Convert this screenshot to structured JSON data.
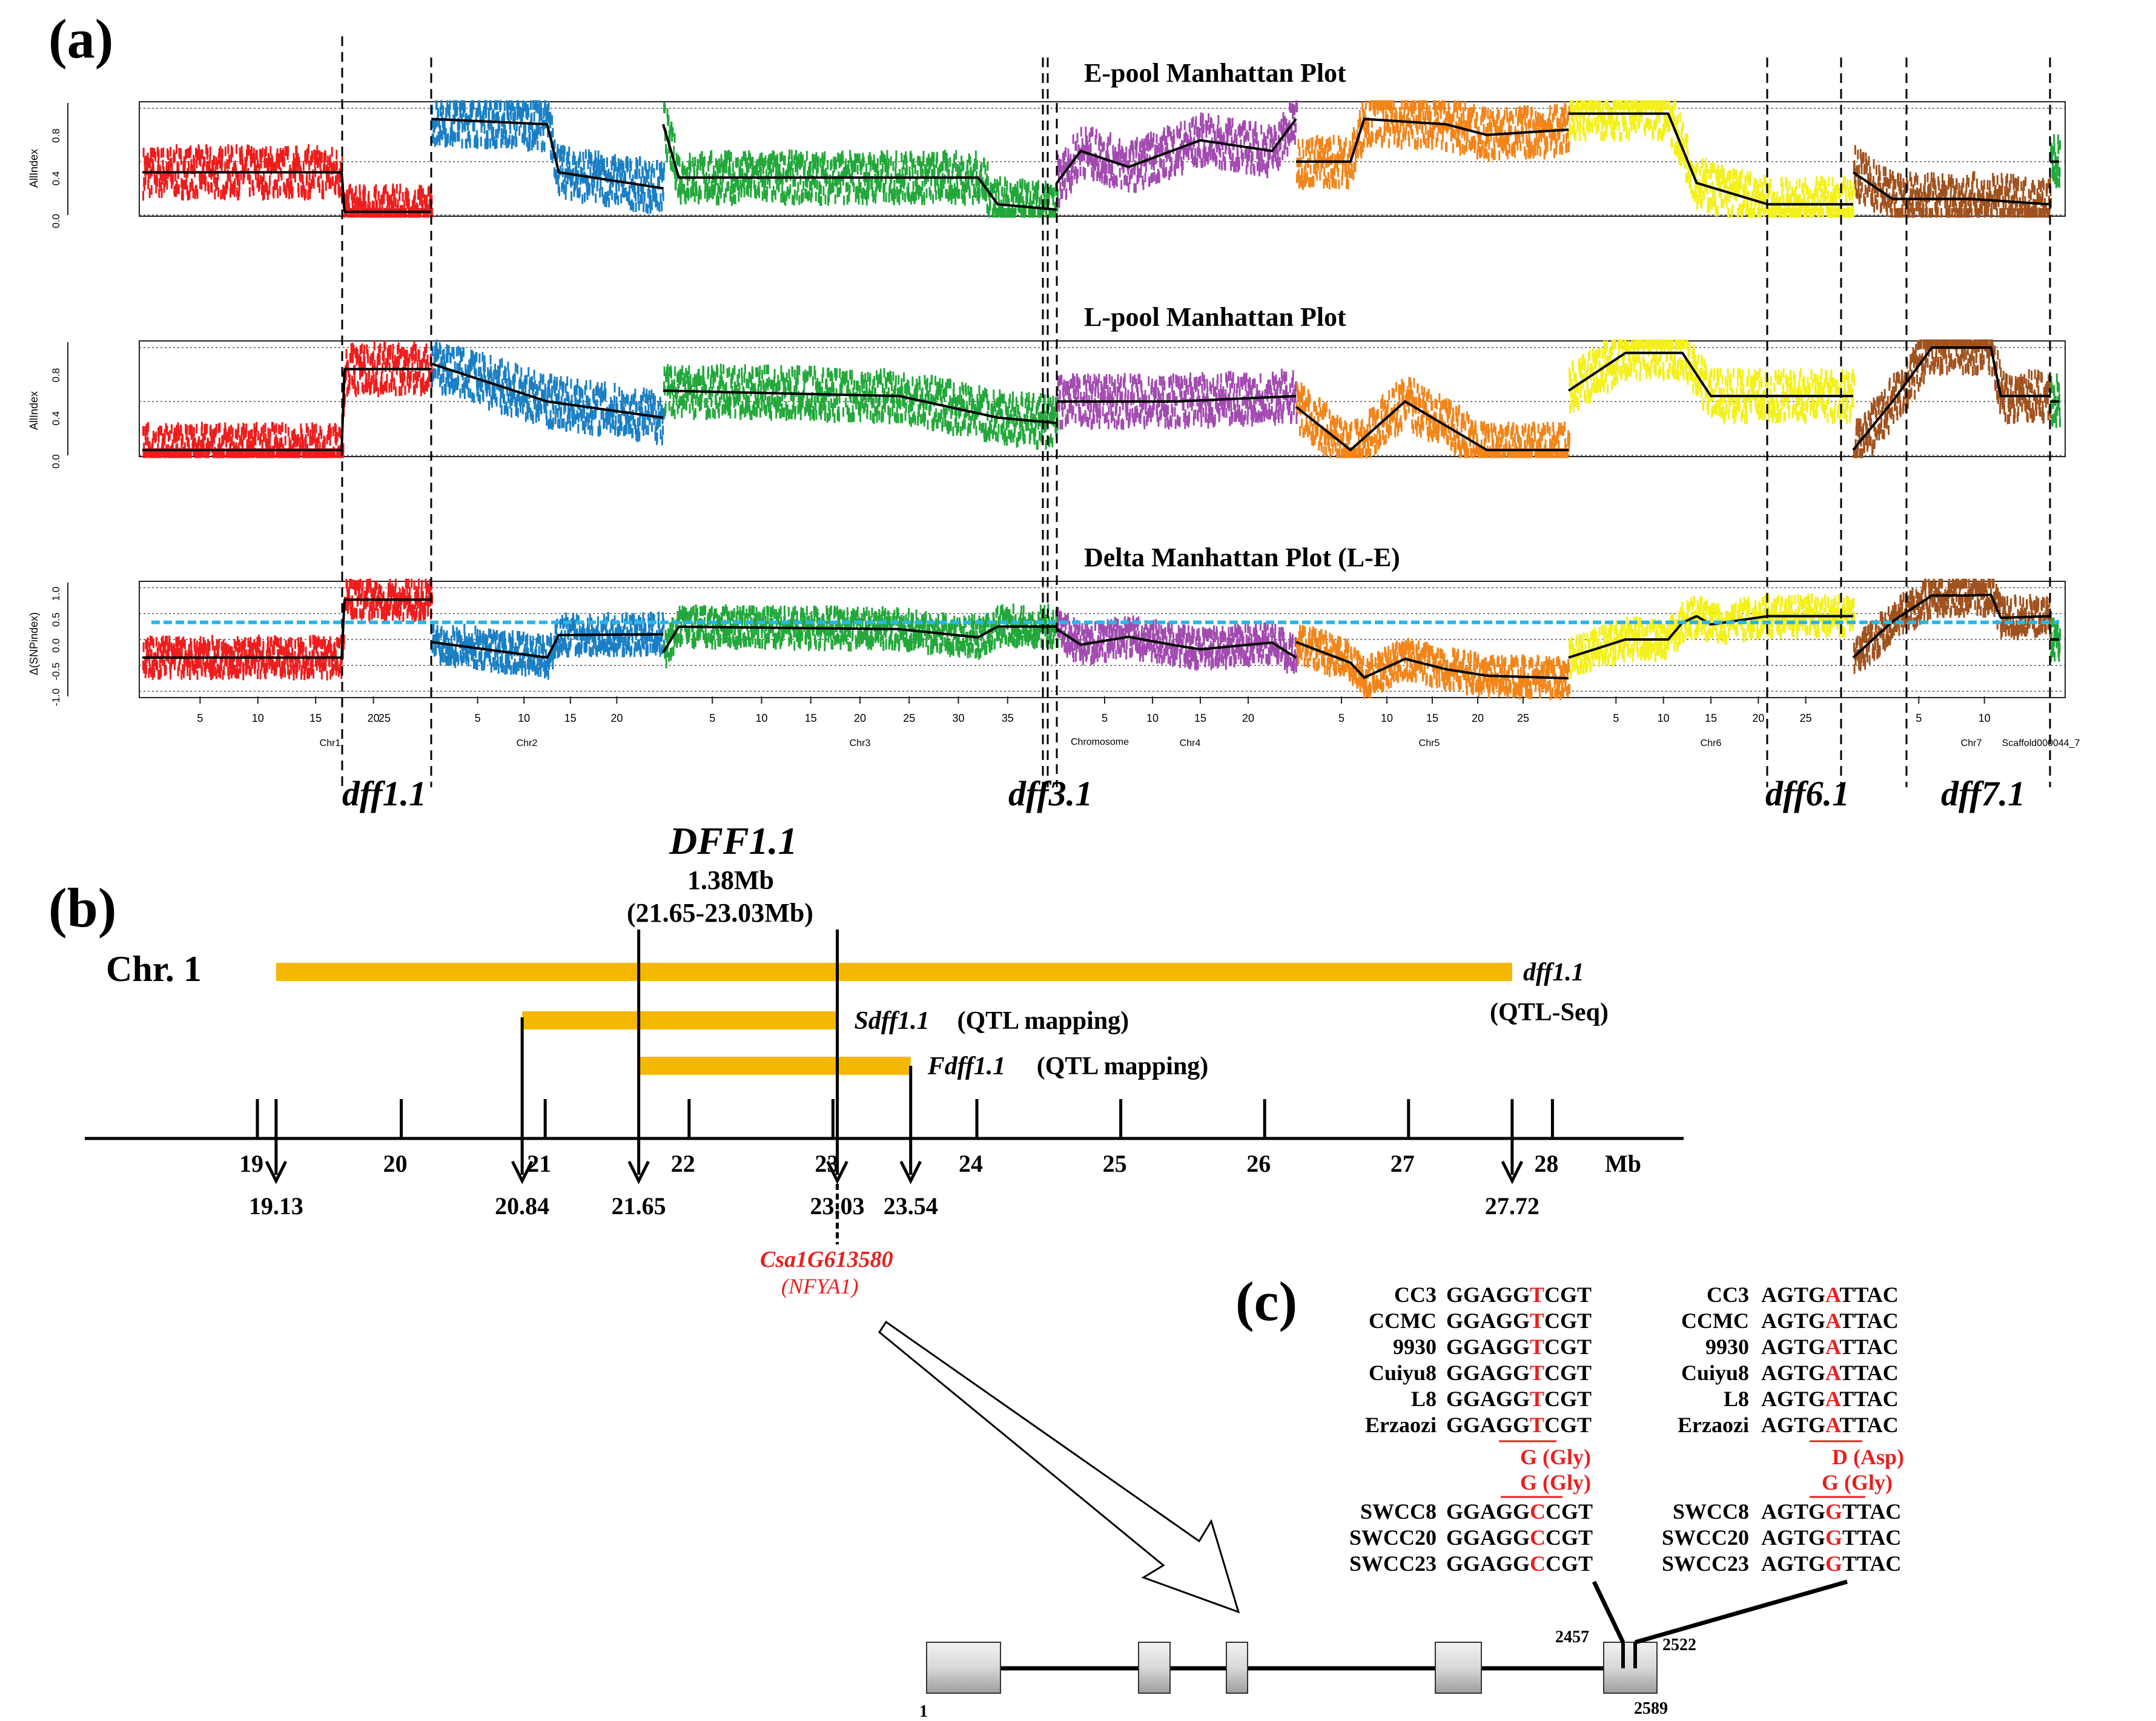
{
  "panels": {
    "a": {
      "label": "(a)",
      "plots": [
        {
          "title": "E-pool Manhattan Plot",
          "ylabel": "AllIndex",
          "yticks": [
            "0.0",
            "0.4",
            "0.8"
          ]
        },
        {
          "title": "L-pool Manhattan Plot",
          "ylabel": "AllIndex",
          "yticks": [
            "0.0",
            "0.4",
            "0.8"
          ]
        },
        {
          "title": "Delta Manhattan Plot (L-E)",
          "ylabel": "Δ(SNPindex)",
          "yticks": [
            "-1.0",
            "-0.5",
            "0.0",
            "0.5",
            "1.0"
          ]
        }
      ],
      "chromosomes": [
        {
          "name": "Chr1",
          "color": "#ee1c1c",
          "ticks": [
            "5",
            "10",
            "15",
            "20"
          ]
        },
        {
          "name": "Chr2",
          "color": "#1a7fc4",
          "ticks": [
            "5",
            "10",
            "15",
            "20"
          ]
        },
        {
          "name": "Chr3",
          "color": "#22a83a",
          "ticks": [
            "5",
            "10",
            "15",
            "20",
            "25",
            "30",
            "35"
          ]
        },
        {
          "name": "Chr4",
          "color": "#a24bb0",
          "ticks": [
            "5",
            "10",
            "15",
            "20"
          ]
        },
        {
          "name": "Chr5",
          "color": "#f28418",
          "ticks": [
            "5",
            "10",
            "15",
            "20",
            "25"
          ]
        },
        {
          "name": "Chr6",
          "color": "#f4f01a",
          "ticks": [
            "5",
            "10",
            "15",
            "20",
            "25"
          ]
        },
        {
          "name": "Chr7",
          "color": "#a0521e",
          "ticks": [
            "5",
            "10"
          ]
        },
        {
          "name": "Scaffold000044_7",
          "color": "#22a83a",
          "ticks": []
        }
      ],
      "xlabel": "Chromosome",
      "extra_tick": "25",
      "qtl_labels": [
        "dff1.1",
        "dff3.1",
        "dff6.1",
        "dff7.1"
      ]
    },
    "b": {
      "label": "(b)",
      "gene_title": "DFF1.1",
      "size": "1.38Mb",
      "range": "(21.65-23.03Mb)",
      "chr": "Chr. 1",
      "bars": [
        {
          "name": "dff1.1",
          "method": "(QTL-Seq)",
          "start": 19.13,
          "end": 27.72
        },
        {
          "name": "Sdff1.1",
          "method": "(QTL mapping)",
          "start": 20.84,
          "end": 23.03
        },
        {
          "name": "Fdff1.1",
          "method": "(QTL mapping)",
          "start": 21.65,
          "end": 23.54
        }
      ],
      "axis_ticks": [
        "19",
        "20",
        "21",
        "22",
        "23",
        "24",
        "25",
        "26",
        "27",
        "28"
      ],
      "axis_unit": "Mb",
      "markers": [
        "19.13",
        "20.84",
        "21.65",
        "23.03",
        "23.54",
        "27.72"
      ],
      "candidate_gene": "Csa1G613580",
      "candidate_alias": "(NFYA1)",
      "bar_color": "#f5b800"
    },
    "c": {
      "label": "(c)",
      "groups": [
        {
          "lines": [
            {
              "name": "CC3",
              "s1": "GGAGG",
              "m1": "T",
              "e1": "CGT",
              "s2": "AGTG",
              "m2": "A",
              "e2": "TTAC"
            },
            {
              "name": "CCMC",
              "s1": "GGAGG",
              "m1": "T",
              "e1": "CGT",
              "s2": "AGTG",
              "m2": "A",
              "e2": "TTAC"
            },
            {
              "name": "9930",
              "s1": "GGAGG",
              "m1": "T",
              "e1": "CGT",
              "s2": "AGTG",
              "m2": "A",
              "e2": "TTAC"
            },
            {
              "name": "Cuiyu8",
              "s1": "GGAGG",
              "m1": "T",
              "e1": "CGT",
              "s2": "AGTG",
              "m2": "A",
              "e2": "TTAC"
            },
            {
              "name": "L8",
              "s1": "GGAGG",
              "m1": "T",
              "e1": "CGT",
              "s2": "AGTG",
              "m2": "A",
              "e2": "TTAC"
            },
            {
              "name": "Erzaozi",
              "s1": "GGAGG",
              "m1": "T",
              "e1": "CGT",
              "s2": "AGTG",
              "m2": "A",
              "e2": "TTAC"
            }
          ]
        },
        {
          "lines": [
            {
              "name": "SWCC8",
              "s1": "GGAGG",
              "m1": "C",
              "e1": "CGT",
              "s2": "AGTG",
              "m2": "G",
              "e2": "TTAC"
            },
            {
              "name": "SWCC20",
              "s1": "GGAGG",
              "m1": "C",
              "e1": "CGT",
              "s2": "AGTG",
              "m2": "G",
              "e2": "TTAC"
            },
            {
              "name": "SWCC23",
              "s1": "GGAGG",
              "m1": "C",
              "e1": "CGT",
              "s2": "AGTG",
              "m2": "G",
              "e2": "TTAC"
            }
          ]
        }
      ],
      "aa1": [
        "G (Gly)",
        "G (Gly)"
      ],
      "aa2": [
        "D (Asp)",
        "G (Gly)"
      ],
      "positions": [
        "1",
        "2457",
        "2522",
        "2589"
      ]
    }
  }
}
